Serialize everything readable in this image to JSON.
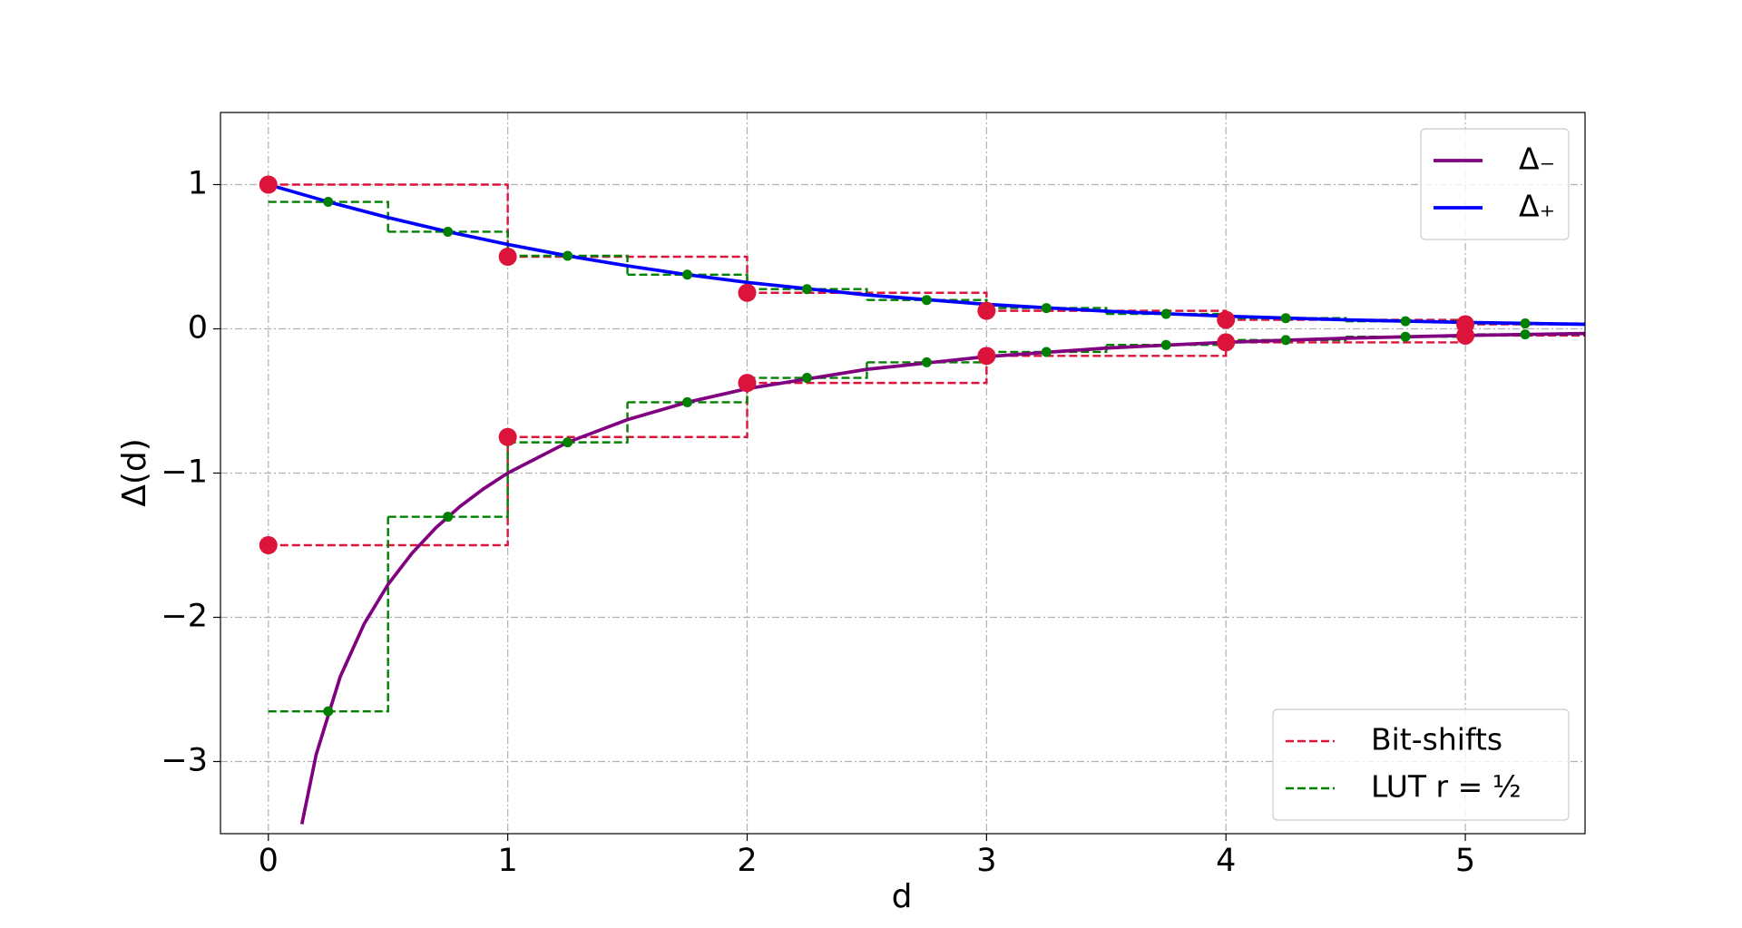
{
  "chart_data": {
    "type": "line",
    "xlabel": "d",
    "ylabel": "Δ(d)",
    "xlim": [
      -0.2,
      5.5
    ],
    "ylim": [
      -3.5,
      1.5
    ],
    "xticks": [
      0,
      1,
      2,
      3,
      4,
      5
    ],
    "yticks": [
      {
        "value": -3,
        "label": "−3"
      },
      {
        "value": -2,
        "label": "−2"
      },
      {
        "value": -1,
        "label": "−1"
      },
      0,
      1
    ],
    "grid": true,
    "series": [
      {
        "name": "Δ₋",
        "color": "#800080",
        "style": "solid",
        "legend": "upper right",
        "x": [
          0.14,
          0.2,
          0.3,
          0.4,
          0.5,
          0.6,
          0.7,
          0.8,
          0.9,
          1,
          1.25,
          1.5,
          1.75,
          2,
          2.5,
          3,
          3.5,
          4,
          4.5,
          5,
          5.5
        ],
        "values": [
          -3.434,
          -2.95,
          -2.413,
          -2.046,
          -1.772,
          -1.556,
          -1.379,
          -1.232,
          -1.108,
          -1,
          -0.787,
          -0.6295,
          -0.509,
          -0.415,
          -0.2807,
          -0.1926,
          -0.1335,
          -0.0931,
          -0.0652,
          -0.0458,
          -0.0322
        ]
      },
      {
        "name": "Δ₊",
        "color": "#0000ff",
        "style": "solid",
        "legend": "upper right",
        "x": [
          0,
          0.25,
          0.5,
          0.75,
          1,
          1.25,
          1.5,
          1.75,
          2,
          2.5,
          3,
          3.5,
          4,
          4.5,
          5,
          5.5
        ],
        "values": [
          1,
          0.8804,
          0.7716,
          0.6732,
          0.585,
          0.5063,
          0.4368,
          0.3755,
          0.3219,
          0.2349,
          0.1699,
          0.1222,
          0.0875,
          0.0624,
          0.0444,
          0.0315
        ]
      },
      {
        "name": "Bit-shifts",
        "color": "#dc143c",
        "style": "dashed",
        "drawstyle": "steps",
        "legend": "lower right",
        "marker": "left",
        "bins": [
          0,
          1,
          2,
          3,
          4,
          5,
          6
        ],
        "branches": [
          [
            1,
            0.5,
            0.25,
            0.125,
            0.0625,
            0.03125
          ],
          [
            -1.5,
            -0.75,
            -0.375,
            -0.1875,
            -0.09375,
            -0.046875
          ]
        ]
      },
      {
        "name": "LUT r = ½",
        "color": "#008000",
        "style": "dashed",
        "drawstyle": "steps",
        "legend": "lower right",
        "marker": "mid",
        "bins": [
          0,
          0.5,
          1,
          1.5,
          2,
          2.5,
          3,
          3.5,
          4,
          4.5,
          5,
          5.5
        ],
        "branches": [
          [
            0.8804,
            0.6732,
            0.5063,
            0.3755,
            0.2753,
            0.2,
            0.1442,
            0.1034,
            0.0739,
            0.0526,
            0.0374
          ],
          [
            -2.652,
            -1.303,
            -0.787,
            -0.509,
            -0.34,
            -0.2322,
            -0.1602,
            -0.1114,
            -0.0779,
            -0.0547,
            -0.0385
          ]
        ]
      }
    ]
  }
}
